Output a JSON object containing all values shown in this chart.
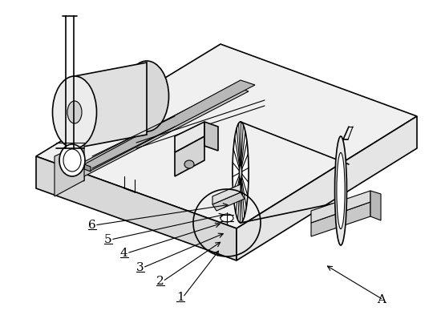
{
  "background_color": "#ffffff",
  "line_color": "#000000",
  "label_color": "#000000",
  "labels_info": [
    [
      "1",
      220,
      375,
      275,
      310
    ],
    [
      "2",
      195,
      355,
      278,
      300
    ],
    [
      "3",
      170,
      338,
      282,
      290
    ],
    [
      "4",
      150,
      320,
      278,
      278
    ],
    [
      "5",
      130,
      303,
      283,
      267
    ],
    [
      "6",
      110,
      285,
      288,
      255
    ],
    [
      "A",
      470,
      378,
      405,
      330
    ]
  ],
  "figsize": [
    5.5,
    4.03
  ],
  "dpi": 100
}
